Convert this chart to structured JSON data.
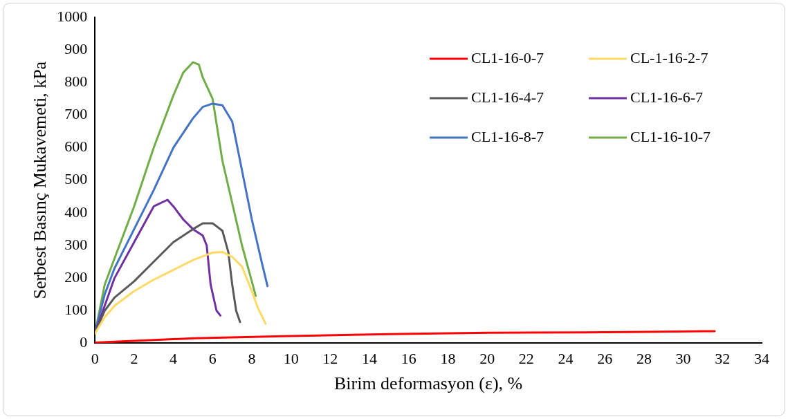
{
  "chart_data": {
    "type": "line",
    "xlabel": "Birim deformasyon (ε), %",
    "ylabel": "Serbest Basınç Mukavemeti, kPa",
    "xlim": [
      0,
      34
    ],
    "xticks": [
      0,
      2,
      4,
      6,
      8,
      10,
      12,
      14,
      16,
      18,
      20,
      22,
      24,
      26,
      28,
      30,
      32,
      34
    ],
    "ylim": [
      0,
      1000
    ],
    "yticks": [
      0,
      100,
      200,
      300,
      400,
      500,
      600,
      700,
      800,
      900,
      1000
    ],
    "grid": false,
    "legend": "top right",
    "marker": "none",
    "line_style": "solid",
    "series": [
      {
        "name": "CL1-16-0-7",
        "color": "#ff0000",
        "x": [
          0,
          5,
          10,
          15,
          20,
          25,
          28,
          31.6
        ],
        "values": [
          2,
          15,
          22,
          28,
          32,
          33,
          35,
          37
        ]
      },
      {
        "name": "CL-1-16-2-7",
        "color": "#ffd966",
        "x": [
          0,
          0.5,
          1,
          2,
          3,
          4,
          5,
          6,
          6.5,
          7,
          7.5,
          8,
          8.3,
          8.7
        ],
        "values": [
          30,
          80,
          115,
          160,
          195,
          225,
          255,
          278,
          280,
          265,
          235,
          160,
          110,
          60
        ]
      },
      {
        "name": "CL1-16-4-7",
        "color": "#595959",
        "x": [
          0,
          0.5,
          1,
          2,
          3,
          4,
          5,
          5.5,
          6,
          6.5,
          6.8,
          7,
          7.2,
          7.4
        ],
        "values": [
          30,
          100,
          140,
          190,
          250,
          310,
          350,
          368,
          368,
          345,
          280,
          180,
          100,
          65
        ]
      },
      {
        "name": "CL1-16-6-7",
        "color": "#7030a0",
        "x": [
          0,
          1,
          2,
          3,
          3.7,
          4,
          4.5,
          5,
          5.5,
          5.7,
          5.9,
          6.2,
          6.4
        ],
        "values": [
          30,
          200,
          310,
          420,
          440,
          420,
          380,
          350,
          330,
          300,
          180,
          100,
          85
        ]
      },
      {
        "name": "CL1-16-8-7",
        "color": "#4472c4",
        "x": [
          0,
          0.5,
          1,
          2,
          3,
          4,
          5,
          5.5,
          6,
          6.5,
          7,
          7.5,
          8,
          8.5,
          8.8
        ],
        "values": [
          30,
          150,
          230,
          350,
          470,
          600,
          690,
          725,
          735,
          730,
          680,
          530,
          380,
          250,
          175
        ]
      },
      {
        "name": "CL1-16-10-7",
        "color": "#70ad47",
        "x": [
          0,
          0.5,
          1,
          2,
          3,
          4,
          4.5,
          5,
          5.3,
          5.5,
          6,
          6.5,
          7,
          7.5,
          8,
          8.2
        ],
        "values": [
          30,
          180,
          260,
          420,
          600,
          760,
          830,
          862,
          855,
          815,
          750,
          560,
          430,
          300,
          190,
          145
        ]
      }
    ]
  }
}
